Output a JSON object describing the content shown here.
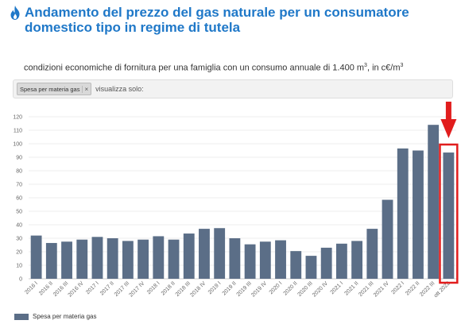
{
  "header": {
    "title": "Andamento del prezzo del gas naturale per un consumatore domestico tipo in regime di tutela",
    "subtitle_main": "condizioni economiche di fornitura per una famiglia con un consumo annuale di 1.400 m",
    "subtitle_sup1": "3",
    "subtitle_mid": ", in c€/m",
    "subtitle_sup2": "3",
    "flame_icon": "flame-icon",
    "accent_color": "#1f78c8"
  },
  "filter": {
    "chip_label": "Spesa per materia gas",
    "chip_close": "×",
    "label": "visualizza solo:"
  },
  "legend": {
    "label": "Spesa per materia gas"
  },
  "chart_data": {
    "type": "bar",
    "categories": [
      "2016 I",
      "2016 II",
      "2016 III",
      "2016 IV",
      "2017 I",
      "2017 II",
      "2017 III",
      "2017 IV",
      "2018 I",
      "2018 II",
      "2018 III",
      "2018 IV",
      "2019 I",
      "2019 II",
      "2019 III",
      "2019 IV",
      "2020 I",
      "2020 II",
      "2020 III",
      "2020 IV",
      "2021 I",
      "2021 II",
      "2021 III",
      "2021 IV",
      "2022 I",
      "2022 II",
      "2022 III",
      "ott 2022"
    ],
    "series": [
      {
        "name": "Spesa per materia gas",
        "color": "#5b6e87",
        "values": [
          32,
          26.5,
          27.5,
          29,
          31,
          30,
          28,
          29,
          31.5,
          29,
          33.5,
          37,
          37.5,
          30,
          25.5,
          27.5,
          28.5,
          20.5,
          17,
          23,
          26,
          28,
          37,
          58.5,
          96.5,
          95,
          114,
          93.5
        ]
      }
    ],
    "ylim": [
      0,
      120
    ],
    "yticks": [
      0,
      10,
      20,
      30,
      40,
      50,
      60,
      70,
      80,
      90,
      100,
      110,
      120
    ],
    "grid": true,
    "legend_position": "bottom-left",
    "highlight": {
      "category": "ott 2022",
      "box_color": "#e11d1d",
      "arrow_icon": "down-arrow-icon"
    }
  }
}
